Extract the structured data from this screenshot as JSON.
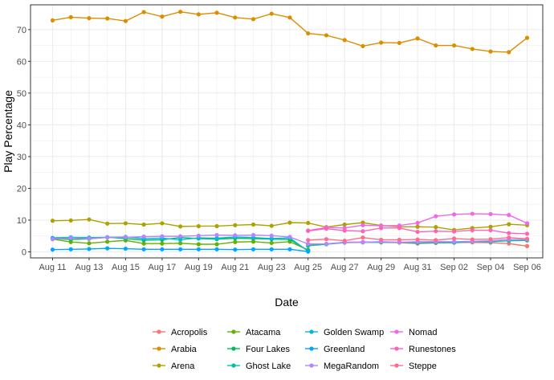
{
  "chart_data": {
    "type": "line",
    "xlabel": "Date",
    "ylabel": "Play Percentage",
    "ylim": [
      -1.9,
      77.8
    ],
    "yticks": [
      0,
      10,
      20,
      30,
      40,
      50,
      60,
      70
    ],
    "x_dates": [
      "Aug 11",
      "Aug 12",
      "Aug 13",
      "Aug 14",
      "Aug 15",
      "Aug 16",
      "Aug 17",
      "Aug 18",
      "Aug 19",
      "Aug 20",
      "Aug 21",
      "Aug 22",
      "Aug 23",
      "Aug 24",
      "Aug 25",
      "Aug 26",
      "Aug 27",
      "Aug 28",
      "Aug 29",
      "Aug 30",
      "Aug 31",
      "Sep 01",
      "Sep 02",
      "Sep 03",
      "Sep 04",
      "Sep 05",
      "Sep 06"
    ],
    "xtick_labels": [
      "Aug 11",
      "Aug 13",
      "Aug 15",
      "Aug 17",
      "Aug 19",
      "Aug 21",
      "Aug 23",
      "Aug 25",
      "Aug 27",
      "Aug 29",
      "Aug 31",
      "Sep 02",
      "Sep 04",
      "Sep 06"
    ],
    "grid": true,
    "legend_position": "bottom",
    "series": [
      {
        "name": "Acropolis",
        "color": "#F8766D",
        "x": [
          "Aug 25",
          "Aug 26",
          "Aug 27",
          "Aug 28",
          "Aug 29",
          "Aug 30",
          "Aug 31",
          "Sep 01",
          "Sep 02",
          "Sep 03",
          "Sep 04",
          "Sep 05",
          "Sep 06"
        ],
        "values": [
          2.3,
          2.5,
          3.0,
          3.1,
          3.0,
          2.9,
          2.6,
          2.8,
          2.9,
          3.0,
          2.9,
          2.6,
          1.8
        ]
      },
      {
        "name": "Arabia",
        "color": "#DB8E00",
        "x": [
          "Aug 11",
          "Aug 12",
          "Aug 13",
          "Aug 14",
          "Aug 15",
          "Aug 16",
          "Aug 17",
          "Aug 18",
          "Aug 19",
          "Aug 20",
          "Aug 21",
          "Aug 22",
          "Aug 23",
          "Aug 24",
          "Aug 25",
          "Aug 26",
          "Aug 27",
          "Aug 28",
          "Aug 29",
          "Aug 30",
          "Aug 31",
          "Sep 01",
          "Sep 02",
          "Sep 03",
          "Sep 04",
          "Sep 05",
          "Sep 06"
        ],
        "values": [
          72.9,
          73.9,
          73.6,
          73.5,
          72.7,
          75.5,
          74.1,
          75.6,
          74.8,
          75.3,
          73.8,
          73.3,
          75.0,
          73.8,
          68.8,
          68.2,
          66.7,
          64.8,
          65.9,
          65.8,
          67.2,
          65.0,
          65.0,
          63.9,
          63.1,
          62.9,
          67.4
        ]
      },
      {
        "name": "Arena",
        "color": "#AEA200",
        "x": [
          "Aug 11",
          "Aug 12",
          "Aug 13",
          "Aug 14",
          "Aug 15",
          "Aug 16",
          "Aug 17",
          "Aug 18",
          "Aug 19",
          "Aug 20",
          "Aug 21",
          "Aug 22",
          "Aug 23",
          "Aug 24",
          "Aug 25",
          "Aug 26",
          "Aug 27",
          "Aug 28",
          "Aug 29",
          "Aug 30",
          "Aug 31",
          "Sep 01",
          "Sep 02",
          "Sep 03",
          "Sep 04",
          "Sep 05",
          "Sep 06"
        ],
        "values": [
          9.8,
          9.9,
          10.2,
          8.9,
          9.0,
          8.6,
          9.0,
          8.0,
          8.1,
          8.1,
          8.4,
          8.6,
          8.2,
          9.2,
          9.1,
          7.8,
          8.6,
          9.2,
          8.3,
          7.9,
          7.9,
          7.8,
          6.9,
          7.5,
          7.9,
          8.7,
          8.4
        ]
      },
      {
        "name": "Atacama",
        "color": "#64B200",
        "x": [
          "Aug 11",
          "Aug 12",
          "Aug 13",
          "Aug 14",
          "Aug 15",
          "Aug 16",
          "Aug 17",
          "Aug 18",
          "Aug 19",
          "Aug 20",
          "Aug 21",
          "Aug 22",
          "Aug 23",
          "Aug 24",
          "Aug 25"
        ],
        "values": [
          4.0,
          3.1,
          2.7,
          3.2,
          3.6,
          2.6,
          2.6,
          2.7,
          2.4,
          2.4,
          3.1,
          3.2,
          2.8,
          3.2,
          0.6
        ]
      },
      {
        "name": "Four Lakes",
        "color": "#00BD5C",
        "x": [
          "Aug 11",
          "Aug 12",
          "Aug 13",
          "Aug 14",
          "Aug 15",
          "Aug 16",
          "Aug 17",
          "Aug 18",
          "Aug 19",
          "Aug 20",
          "Aug 21",
          "Aug 22",
          "Aug 23",
          "Aug 24",
          "Aug 25"
        ],
        "values": [
          4.2,
          3.9,
          4.1,
          4.6,
          4.2,
          3.7,
          3.8,
          4.5,
          4.2,
          4.0,
          4.3,
          4.2,
          4.0,
          3.9,
          0.4
        ]
      },
      {
        "name": "Ghost Lake",
        "color": "#00C1A7",
        "x": [
          "Aug 25",
          "Aug 26",
          "Aug 27",
          "Aug 28",
          "Aug 29",
          "Aug 30",
          "Aug 31",
          "Sep 01",
          "Sep 02",
          "Sep 03",
          "Sep 04",
          "Sep 05",
          "Sep 06"
        ],
        "values": [
          1.9,
          2.4,
          2.9,
          3.0,
          3.0,
          3.0,
          2.8,
          2.9,
          2.9,
          3.2,
          3.2,
          3.5,
          3.6
        ]
      },
      {
        "name": "Golden Swamp",
        "color": "#00BADE",
        "x": [
          "Aug 11",
          "Aug 12",
          "Aug 13",
          "Aug 14",
          "Aug 15",
          "Aug 16",
          "Aug 17",
          "Aug 18",
          "Aug 19",
          "Aug 20",
          "Aug 21",
          "Aug 22",
          "Aug 23",
          "Aug 24",
          "Aug 25"
        ],
        "values": [
          4.4,
          4.6,
          4.5,
          4.6,
          4.7,
          4.2,
          4.3,
          3.8,
          4.4,
          4.3,
          4.7,
          4.5,
          4.2,
          4.4,
          0.2
        ]
      },
      {
        "name": "Greenland",
        "color": "#00A6FF",
        "x": [
          "Aug 11",
          "Aug 12",
          "Aug 13",
          "Aug 14",
          "Aug 15",
          "Aug 16",
          "Aug 17",
          "Aug 18",
          "Aug 19",
          "Aug 20",
          "Aug 21",
          "Aug 22",
          "Aug 23",
          "Aug 24",
          "Aug 25"
        ],
        "values": [
          0.7,
          0.8,
          0.9,
          1.1,
          1.0,
          0.8,
          0.8,
          0.8,
          0.8,
          0.8,
          0.7,
          0.8,
          0.8,
          0.8,
          0.1
        ]
      },
      {
        "name": "MegaRandom",
        "color": "#B385FF",
        "x": [
          "Aug 11",
          "Aug 12",
          "Aug 13",
          "Aug 14",
          "Aug 15",
          "Aug 16",
          "Aug 17",
          "Aug 18",
          "Aug 19",
          "Aug 20",
          "Aug 21",
          "Aug 22",
          "Aug 23",
          "Aug 24",
          "Aug 25",
          "Aug 26",
          "Aug 27",
          "Aug 28",
          "Aug 29",
          "Aug 30",
          "Aug 31",
          "Sep 01",
          "Sep 02",
          "Sep 03",
          "Sep 04",
          "Sep 05",
          "Sep 06"
        ],
        "values": [
          4.0,
          4.4,
          4.2,
          4.5,
          4.6,
          4.8,
          4.9,
          4.9,
          5.1,
          5.3,
          5.2,
          5.3,
          5.1,
          4.7,
          2.5,
          2.5,
          3.0,
          3.0,
          3.2,
          3.0,
          3.2,
          3.2,
          3.2,
          3.3,
          3.5,
          3.9,
          3.9
        ]
      },
      {
        "name": "Nomad",
        "color": "#EF67EB",
        "x": [
          "Aug 25",
          "Aug 26",
          "Aug 27",
          "Aug 28",
          "Aug 29",
          "Aug 30",
          "Aug 31",
          "Sep 01",
          "Sep 02",
          "Sep 03",
          "Sep 04",
          "Sep 05",
          "Sep 06"
        ],
        "values": [
          6.7,
          7.7,
          7.5,
          8.4,
          8.2,
          8.3,
          9.1,
          11.2,
          11.8,
          12.0,
          11.9,
          11.6,
          9.0
        ]
      },
      {
        "name": "Runestones",
        "color": "#FF63B6",
        "x": [
          "Aug 25",
          "Aug 26",
          "Aug 27",
          "Aug 28",
          "Aug 29",
          "Aug 30",
          "Aug 31",
          "Sep 01",
          "Sep 02",
          "Sep 03",
          "Sep 04",
          "Sep 05",
          "Sep 06"
        ],
        "values": [
          6.6,
          7.3,
          6.7,
          6.5,
          7.5,
          7.5,
          6.3,
          6.5,
          6.4,
          6.8,
          6.8,
          5.9,
          5.7
        ]
      },
      {
        "name": "Steppe",
        "color": "#FF6C91",
        "x": [
          "Aug 25",
          "Aug 26",
          "Aug 27",
          "Aug 28",
          "Aug 29",
          "Aug 30",
          "Aug 31",
          "Sep 01",
          "Sep 02",
          "Sep 03",
          "Sep 04",
          "Sep 05",
          "Sep 06"
        ],
        "values": [
          3.7,
          4.0,
          3.5,
          4.5,
          3.8,
          3.8,
          3.9,
          3.7,
          4.2,
          3.9,
          4.0,
          4.5,
          4.1
        ]
      }
    ]
  }
}
